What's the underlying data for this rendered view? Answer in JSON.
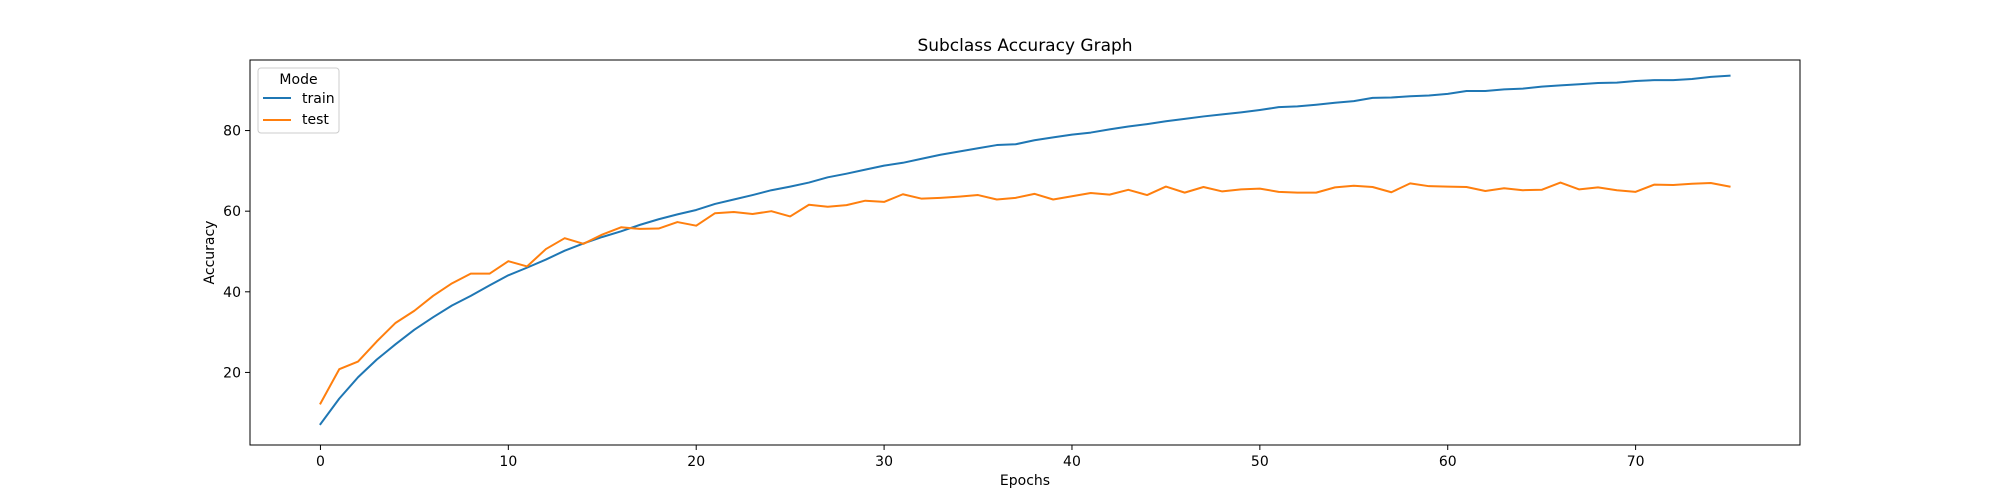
{
  "chart_data": {
    "type": "line",
    "title": "Subclass Accuracy Graph",
    "xlabel": "Epochs",
    "ylabel": "Accuracy",
    "xlim": [
      -3.75,
      78.75
    ],
    "ylim": [
      2.0,
      97.5
    ],
    "xticks": [
      0,
      10,
      20,
      30,
      40,
      50,
      60,
      70
    ],
    "yticks": [
      20,
      40,
      60,
      80
    ],
    "grid": false,
    "legend": {
      "title": "Mode",
      "placement": "top-left"
    },
    "series": [
      {
        "name": "train",
        "color": "#1f77b4",
        "values": [
          7.2,
          13.5,
          18.8,
          23.2,
          27.0,
          30.6,
          33.7,
          36.6,
          39.0,
          41.6,
          44.1,
          46.0,
          48.0,
          50.2,
          52.0,
          53.6,
          55.0,
          56.6,
          58.0,
          59.2,
          60.3,
          61.8,
          62.9,
          64.0,
          65.2,
          66.1,
          67.1,
          68.4,
          69.3,
          70.3,
          71.3,
          72.0,
          73.0,
          74.0,
          74.8,
          75.6,
          76.4,
          76.6,
          77.6,
          78.3,
          79.0,
          79.5,
          80.3,
          81.0,
          81.6,
          82.3,
          82.9,
          83.5,
          84.0,
          84.5,
          85.1,
          85.8,
          86.0,
          86.4,
          86.9,
          87.3,
          88.1,
          88.2,
          88.5,
          88.7,
          89.1,
          89.8,
          89.8,
          90.2,
          90.4,
          90.9,
          91.2,
          91.5,
          91.8,
          91.9,
          92.3,
          92.5,
          92.5,
          92.8,
          93.3,
          93.6
        ]
      },
      {
        "name": "test",
        "color": "#ff7f0e",
        "values": [
          12.3,
          20.8,
          22.7,
          27.7,
          32.3,
          35.3,
          39.0,
          42.1,
          44.5,
          44.5,
          47.6,
          46.3,
          50.6,
          53.3,
          51.9,
          54.2,
          56.0,
          55.6,
          55.7,
          57.3,
          56.4,
          59.5,
          59.8,
          59.3,
          60.0,
          58.7,
          61.6,
          61.1,
          61.5,
          62.6,
          62.3,
          64.2,
          63.1,
          63.3,
          63.6,
          64.0,
          62.9,
          63.3,
          64.3,
          62.9,
          63.7,
          64.5,
          64.1,
          65.3,
          64.0,
          66.1,
          64.6,
          66.0,
          64.9,
          65.4,
          65.6,
          64.8,
          64.6,
          64.6,
          65.9,
          66.3,
          66.0,
          64.7,
          66.9,
          66.2,
          66.1,
          66.0,
          65.0,
          65.7,
          65.2,
          65.3,
          67.1,
          65.4,
          65.9,
          65.2,
          64.8,
          66.6,
          66.5,
          66.8,
          67.0,
          66.1
        ]
      }
    ]
  }
}
